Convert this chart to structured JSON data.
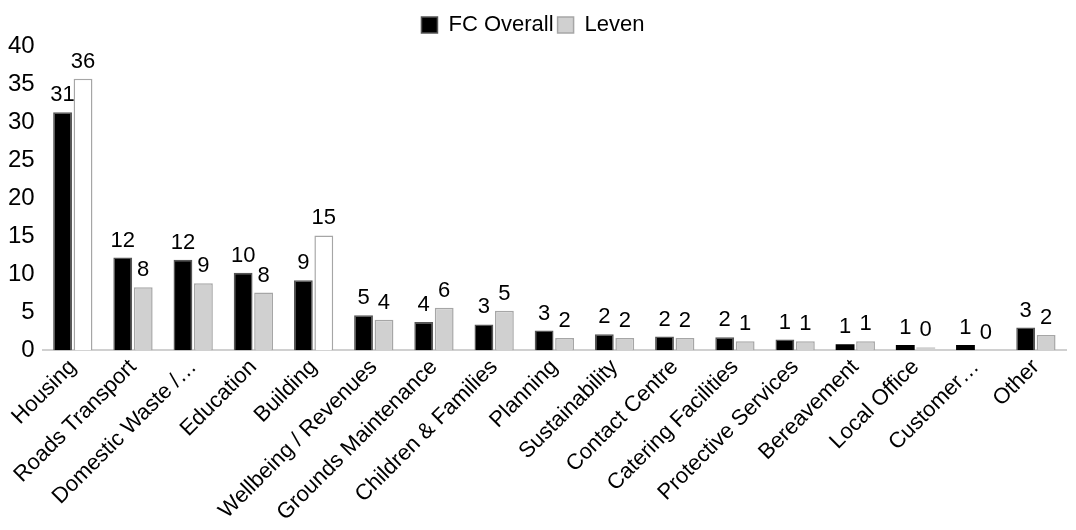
{
  "chart_data": {
    "type": "bar",
    "categories": [
      "Housing",
      "Roads Transport",
      "Domestic Waste /…",
      "Education",
      "Building",
      "Wellbeing / Revenues",
      "Grounds Maintenance",
      "Children & Families",
      "Planning",
      "Sustainability",
      "Contact Centre",
      "Catering Facilities",
      "Protective Services",
      "Bereavement",
      "Local Office",
      "Customer…",
      "Other"
    ],
    "series": [
      {
        "name": "FC Overall",
        "color": "#000000",
        "values": [
          31.3,
          12.2,
          11.9,
          10.2,
          9.2,
          4.6,
          3.7,
          3.4,
          2.6,
          2.1,
          1.8,
          1.7,
          1.4,
          0.8,
          0.7,
          0.7,
          3.0
        ],
        "value_labels": [
          "31",
          "12",
          "12",
          "10",
          "9",
          "5",
          "4",
          "3",
          "3",
          "2",
          "2",
          "2",
          "1",
          "1",
          "1",
          "1",
          "3"
        ]
      },
      {
        "name": "Leven",
        "color": "#d0d0d0",
        "colors": [
          "#ffffff",
          "#d0d0d0",
          "#d0d0d0",
          "#d0d0d0",
          "#ffffff",
          "#d0d0d0",
          "#d0d0d0",
          "#d0d0d0",
          "#d0d0d0",
          "#d0d0d0",
          "#d0d0d0",
          "#d0d0d0",
          "#d0d0d0",
          "#d0d0d0",
          "#d0d0d0",
          "#d0d0d0",
          "#d0d0d0"
        ],
        "values": [
          35.7,
          8.3,
          8.8,
          7.6,
          15.1,
          4.0,
          5.6,
          5.2,
          1.6,
          1.6,
          1.6,
          1.2,
          1.2,
          1.2,
          0.4,
          0,
          2.0
        ],
        "value_labels": [
          "36",
          "8",
          "9",
          "8",
          "15",
          "4",
          "6",
          "5",
          "2",
          "2",
          "2",
          "1",
          "1",
          "1",
          "0",
          "0",
          "2"
        ]
      }
    ],
    "ylim": [
      0,
      40
    ],
    "yticks": [
      0,
      5,
      10,
      15,
      20,
      25,
      30,
      35,
      40
    ],
    "grid": false,
    "legend": "top"
  }
}
